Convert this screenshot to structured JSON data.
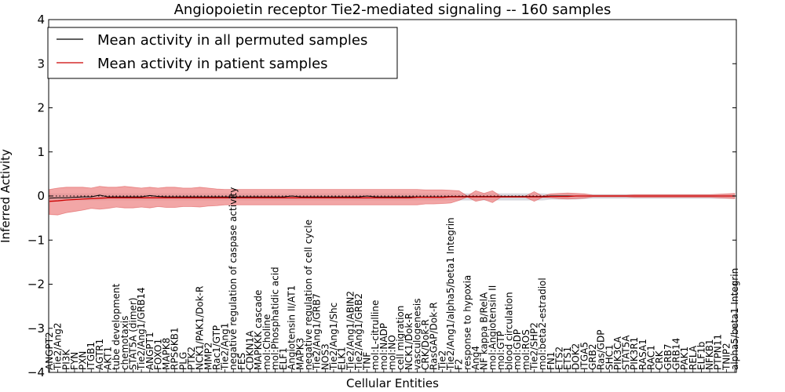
{
  "chart_data": {
    "type": "line",
    "title": "Angiopoietin receptor Tie2-mediated signaling -- 160 samples",
    "xlabel": "Cellular Entities",
    "ylabel": "Inferred Activity",
    "ylim": [
      -4,
      4
    ],
    "yticks": [
      -4,
      -3,
      -2,
      -1,
      0,
      1,
      2,
      3,
      4
    ],
    "legend": {
      "position": "top-left",
      "entries": [
        {
          "label": "Mean activity in all permuted samples",
          "color": "#000000"
        },
        {
          "label": "Mean activity in patient samples",
          "color": "#cc0000"
        }
      ]
    },
    "colors": {
      "patient_line": "#cc0000",
      "patient_band": "#ee8888",
      "permuted_line": "#000000",
      "permuted_band": "#c8c8d0"
    },
    "categories": [
      "ANGPT2",
      "Tie2/Ang2",
      "PI3K",
      "FYN",
      "PXN",
      "ITGB1",
      "AGTR1",
      "AKT1",
      "tube development",
      "chemotaxis",
      "STAT5A (dimer)",
      "Tie2/Ang1/GRB14",
      "ANGPT1",
      "FOXO1",
      "MAPK8",
      "RPS6KB1",
      "PLG",
      "PTK2",
      "NCK1/PAK1/Dok-R",
      "MMP2",
      "Rac1/GTP",
      "Tie2/Ang1",
      "negative regulation of caspase activity",
      "FES",
      "CDKN1A",
      "MAPKKK cascade",
      "mol:Choline",
      "mol:Phosphatidic acid",
      "ELF1",
      "Angiotensin II/AT1",
      "MAPK3",
      "negative regulation of cell cycle",
      "Tie2/Ang1/GRB7",
      "NOS3",
      "Tie2/Ang1/Shc",
      "ELK1",
      "Tie2/Ang1/ABIN2",
      "Tie2/Ang1/GRB2",
      "TNF",
      "mol:L-citrulline",
      "mol:NADP",
      "mol:NO",
      "cell migration",
      "NCK1/Dok-R",
      "vasculogenesis",
      "CRK/Dok-R",
      "RasGAP/Dok-R",
      "Tie2",
      "Tie2/Ang1/alpha5/beta1 Integrin",
      "F2",
      "response to hypoxia",
      "Ang4",
      "NF kappa B/RelA",
      "mol:Angiotensin II",
      "mol:GTP",
      "blood circulation",
      "mol:GDP",
      "mol:ROS",
      "Tie2/SHP2",
      "mol:beta2-estradiol",
      "FN1",
      "ETS2",
      "ETS1",
      "DOK2",
      "ITGA5",
      "GRB2",
      "Ras/GDP",
      "SHC1",
      "PIK3CA",
      "STAT5A",
      "PIK3R1",
      "RASA1",
      "RAC1",
      "CRK",
      "GRB7",
      "GRB14",
      "PAK1",
      "RELA",
      "ELF1b",
      "NFKB1",
      "PTPN11",
      "TNIP2",
      "alpha5/beta1 Integrin"
    ],
    "series": [
      {
        "name": "Mean activity in patient samples",
        "values": [
          -0.12,
          -0.11,
          -0.09,
          -0.08,
          -0.07,
          -0.06,
          -0.05,
          -0.04,
          -0.04,
          -0.04,
          -0.04,
          -0.04,
          -0.04,
          -0.04,
          -0.04,
          -0.04,
          -0.04,
          -0.04,
          -0.04,
          -0.04,
          -0.04,
          -0.04,
          -0.04,
          -0.04,
          -0.04,
          -0.04,
          -0.04,
          -0.04,
          -0.04,
          -0.04,
          -0.04,
          -0.04,
          -0.04,
          -0.04,
          -0.04,
          -0.04,
          -0.04,
          -0.04,
          -0.04,
          -0.04,
          -0.04,
          -0.04,
          -0.04,
          -0.04,
          -0.03,
          -0.03,
          -0.03,
          -0.03,
          -0.02,
          -0.02,
          -0.02,
          -0.02,
          -0.02,
          -0.02,
          -0.02,
          -0.02,
          -0.02,
          -0.02,
          -0.02,
          -0.02,
          -0.01,
          -0.01,
          -0.01,
          0.0,
          0.0,
          0.0,
          0.0,
          0.0,
          0.0,
          0.0,
          0.0,
          0.0,
          0.0,
          0.0,
          0.0,
          0.0,
          0.0,
          0.0,
          0.0,
          0.0,
          0.0,
          0.0,
          0.0
        ],
        "band_upper": [
          0.15,
          0.18,
          0.2,
          0.2,
          0.2,
          0.18,
          0.22,
          0.2,
          0.2,
          0.22,
          0.2,
          0.18,
          0.2,
          0.18,
          0.2,
          0.2,
          0.18,
          0.18,
          0.2,
          0.18,
          0.16,
          0.15,
          0.15,
          0.15,
          0.15,
          0.15,
          0.15,
          0.15,
          0.15,
          0.15,
          0.15,
          0.15,
          0.15,
          0.15,
          0.15,
          0.15,
          0.15,
          0.15,
          0.15,
          0.15,
          0.15,
          0.15,
          0.15,
          0.15,
          0.15,
          0.14,
          0.14,
          0.14,
          0.13,
          0.12,
          0.0,
          0.12,
          0.06,
          0.12,
          0.0,
          0.0,
          0.0,
          0.0,
          0.1,
          0.0,
          0.05,
          0.06,
          0.07,
          0.06,
          0.05,
          0.02,
          0.02,
          0.02,
          0.02,
          0.02,
          0.03,
          0.03,
          0.03,
          0.03,
          0.03,
          0.03,
          0.03,
          0.03,
          0.03,
          0.03,
          0.04,
          0.05,
          0.06
        ],
        "band_lower": [
          -0.42,
          -0.43,
          -0.38,
          -0.35,
          -0.32,
          -0.28,
          -0.3,
          -0.28,
          -0.25,
          -0.27,
          -0.27,
          -0.25,
          -0.27,
          -0.24,
          -0.26,
          -0.26,
          -0.24,
          -0.24,
          -0.25,
          -0.23,
          -0.22,
          -0.2,
          -0.2,
          -0.2,
          -0.2,
          -0.2,
          -0.2,
          -0.2,
          -0.2,
          -0.2,
          -0.2,
          -0.2,
          -0.2,
          -0.2,
          -0.2,
          -0.2,
          -0.2,
          -0.2,
          -0.2,
          -0.2,
          -0.2,
          -0.2,
          -0.2,
          -0.2,
          -0.2,
          -0.18,
          -0.18,
          -0.17,
          -0.16,
          -0.1,
          -0.02,
          -0.12,
          -0.08,
          -0.15,
          -0.03,
          -0.03,
          -0.03,
          -0.03,
          -0.12,
          -0.03,
          -0.04,
          -0.06,
          -0.07,
          -0.06,
          -0.05,
          -0.02,
          -0.02,
          -0.02,
          -0.02,
          -0.02,
          -0.03,
          -0.03,
          -0.03,
          -0.03,
          -0.03,
          -0.03,
          -0.03,
          -0.03,
          -0.03,
          -0.03,
          -0.04,
          -0.05,
          -0.06
        ]
      },
      {
        "name": "Mean activity in all permuted samples",
        "values": [
          -0.05,
          -0.04,
          -0.04,
          -0.03,
          -0.02,
          -0.02,
          0.02,
          -0.02,
          -0.02,
          -0.02,
          -0.02,
          -0.02,
          0.01,
          -0.01,
          -0.02,
          -0.02,
          -0.02,
          -0.02,
          -0.02,
          -0.02,
          -0.02,
          -0.02,
          -0.02,
          -0.02,
          -0.02,
          -0.02,
          -0.02,
          -0.02,
          -0.02,
          0.0,
          -0.02,
          -0.02,
          -0.02,
          -0.02,
          -0.02,
          -0.02,
          -0.02,
          -0.02,
          0.0,
          -0.02,
          -0.02,
          -0.02,
          -0.02,
          -0.02,
          -0.02,
          -0.02,
          -0.02,
          -0.02,
          -0.01,
          -0.01,
          -0.01,
          -0.01,
          -0.01,
          -0.01,
          -0.01,
          -0.01,
          -0.01,
          -0.01,
          -0.01,
          -0.01,
          0.0,
          0.0,
          0.0,
          0.0,
          0.0,
          0.0,
          0.0,
          0.0,
          0.0,
          0.0,
          0.0,
          0.0,
          0.0,
          0.0,
          0.0,
          0.0,
          0.0,
          0.0,
          0.0,
          0.0,
          0.0,
          0.0,
          0.0
        ],
        "band_upper": [
          0.06,
          0.06,
          0.06,
          0.06,
          0.06,
          0.06,
          0.06,
          0.06,
          0.06,
          0.06,
          0.06,
          0.06,
          0.06,
          0.06,
          0.06,
          0.06,
          0.06,
          0.06,
          0.06,
          0.06,
          0.06,
          0.06,
          0.06,
          0.06,
          0.06,
          0.06,
          0.06,
          0.06,
          0.06,
          0.06,
          0.06,
          0.06,
          0.06,
          0.06,
          0.06,
          0.06,
          0.06,
          0.06,
          0.06,
          0.06,
          0.06,
          0.06,
          0.06,
          0.06,
          0.06,
          0.06,
          0.06,
          0.06,
          0.06,
          0.06,
          0.06,
          0.06,
          0.06,
          0.06,
          0.06,
          0.06,
          0.06,
          0.06,
          0.06,
          0.06,
          0.05,
          0.05,
          0.05,
          0.05,
          0.05,
          0.04,
          0.04,
          0.04,
          0.04,
          0.04,
          0.04,
          0.04,
          0.04,
          0.04,
          0.04,
          0.04,
          0.04,
          0.04,
          0.04,
          0.04,
          0.04,
          0.04,
          0.04
        ],
        "band_lower": [
          -0.1,
          -0.1,
          -0.1,
          -0.1,
          -0.1,
          -0.1,
          -0.1,
          -0.1,
          -0.1,
          -0.1,
          -0.1,
          -0.1,
          -0.1,
          -0.1,
          -0.1,
          -0.1,
          -0.1,
          -0.1,
          -0.1,
          -0.1,
          -0.1,
          -0.1,
          -0.1,
          -0.1,
          -0.1,
          -0.1,
          -0.1,
          -0.1,
          -0.1,
          -0.1,
          -0.1,
          -0.1,
          -0.1,
          -0.1,
          -0.1,
          -0.1,
          -0.1,
          -0.1,
          -0.1,
          -0.1,
          -0.1,
          -0.1,
          -0.1,
          -0.1,
          -0.1,
          -0.1,
          -0.1,
          -0.1,
          -0.1,
          -0.1,
          -0.1,
          -0.1,
          -0.1,
          -0.1,
          -0.1,
          -0.1,
          -0.1,
          -0.1,
          -0.1,
          -0.1,
          -0.08,
          -0.08,
          -0.08,
          -0.08,
          -0.07,
          -0.06,
          -0.06,
          -0.06,
          -0.06,
          -0.06,
          -0.06,
          -0.06,
          -0.06,
          -0.06,
          -0.06,
          -0.06,
          -0.06,
          -0.06,
          -0.06,
          -0.06,
          -0.06,
          -0.06,
          -0.06
        ]
      }
    ]
  }
}
